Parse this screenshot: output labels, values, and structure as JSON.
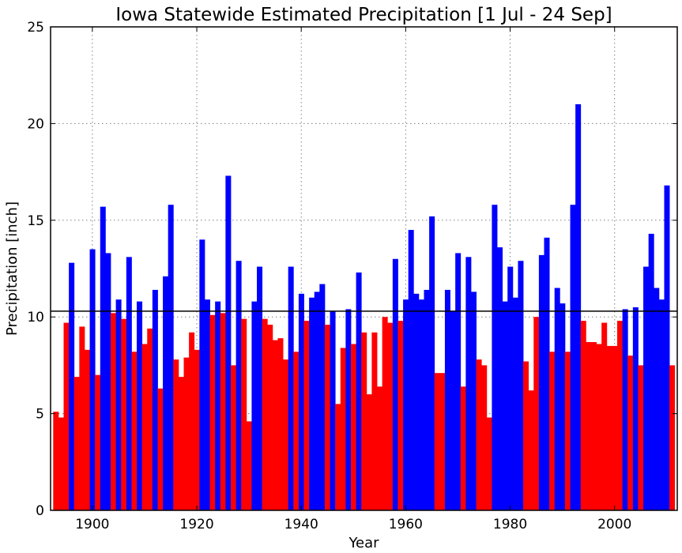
{
  "chart_data": {
    "type": "bar",
    "title": "Iowa Statewide Estimated Precipitation [1 Jul - 24 Sep]",
    "xlabel": "Year",
    "ylabel": "Precipitation [inch]",
    "xlim": [
      1892,
      2012
    ],
    "ylim": [
      0,
      25
    ],
    "xticks": [
      1900,
      1920,
      1940,
      1960,
      1980,
      2000
    ],
    "yticks": [
      0,
      5,
      10,
      15,
      20,
      25
    ],
    "grid": true,
    "average_line": 10.3,
    "colors": {
      "above": "#0000ff",
      "below": "#ff0000",
      "average_line": "#000000"
    },
    "series": [
      {
        "years": [
          1893,
          1894,
          1895,
          1896,
          1897,
          1898,
          1899,
          1900,
          1901,
          1902,
          1903,
          1904,
          1905,
          1906,
          1907,
          1908,
          1909,
          1910,
          1911,
          1912,
          1913,
          1914,
          1915,
          1916,
          1917,
          1918,
          1919,
          1920,
          1921,
          1922,
          1923,
          1924,
          1925,
          1926,
          1927,
          1928,
          1929,
          1930,
          1931,
          1932,
          1933,
          1934,
          1935,
          1936,
          1937,
          1938,
          1939,
          1940,
          1941,
          1942,
          1943,
          1944,
          1945,
          1946,
          1947,
          1948,
          1949,
          1950,
          1951,
          1952,
          1953,
          1954,
          1955,
          1956,
          1957,
          1958,
          1959,
          1960,
          1961,
          1962,
          1963,
          1964,
          1965,
          1966,
          1967,
          1968,
          1969,
          1970,
          1971,
          1972,
          1973,
          1974,
          1975,
          1976,
          1977,
          1978,
          1979,
          1980,
          1981,
          1982,
          1983,
          1984,
          1985,
          1986,
          1987,
          1988,
          1989,
          1990,
          1991,
          1992,
          1993,
          1994,
          1995,
          1996,
          1997,
          1998,
          1999,
          2000,
          2001,
          2002,
          2003,
          2004,
          2005,
          2006,
          2007,
          2008,
          2009,
          2010,
          2011
        ],
        "values": [
          5.1,
          4.8,
          9.7,
          12.8,
          6.9,
          9.5,
          8.3,
          13.5,
          7.0,
          15.7,
          13.3,
          10.2,
          10.9,
          9.9,
          13.1,
          8.2,
          10.8,
          8.6,
          9.4,
          11.4,
          6.3,
          12.1,
          15.8,
          7.8,
          6.9,
          7.9,
          9.2,
          8.3,
          14.0,
          10.9,
          10.1,
          10.8,
          10.2,
          17.3,
          7.5,
          12.9,
          9.9,
          4.6,
          10.8,
          12.6,
          9.9,
          9.6,
          8.8,
          8.9,
          7.8,
          12.6,
          8.2,
          11.2,
          9.8,
          11.0,
          11.3,
          11.7,
          9.6,
          10.3,
          5.5,
          8.4,
          10.4,
          8.6,
          12.3,
          9.2,
          6.0,
          9.2,
          6.4,
          10.0,
          9.7,
          13.0,
          9.8,
          10.9,
          14.5,
          11.2,
          10.9,
          11.4,
          15.2,
          7.1,
          7.1,
          11.4,
          10.3,
          13.3,
          6.4,
          13.1,
          11.3,
          7.8,
          7.5,
          4.8,
          15.8,
          13.6,
          10.8,
          12.6,
          11.0,
          12.9,
          7.7,
          6.2,
          10.0,
          13.2,
          14.1,
          8.2,
          11.5,
          10.7,
          8.2,
          15.8,
          21.0,
          9.8,
          8.7,
          8.7,
          8.6,
          9.7,
          8.5,
          8.5,
          9.8,
          10.4,
          8.0,
          10.5,
          7.5,
          12.6,
          14.3,
          11.5,
          10.9,
          16.8,
          7.5
        ]
      }
    ]
  }
}
